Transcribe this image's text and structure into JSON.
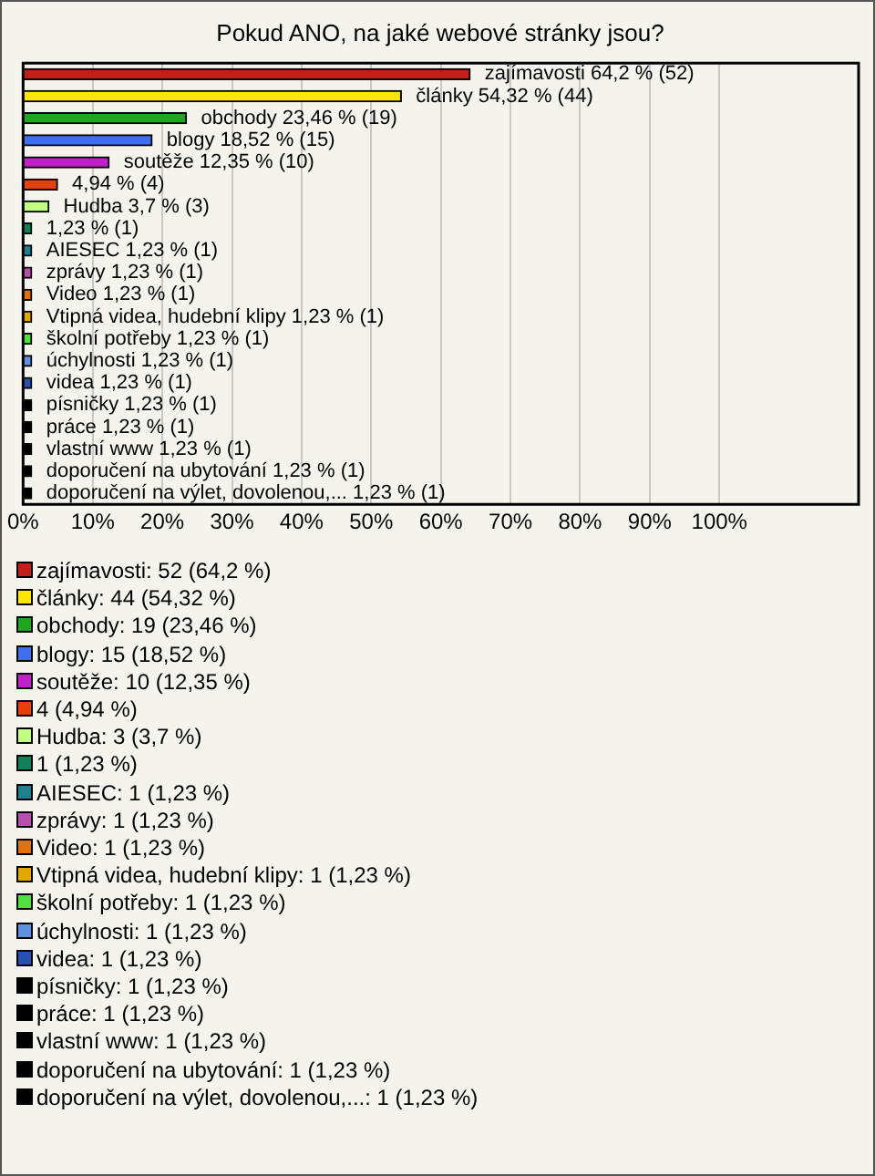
{
  "chart_data": {
    "type": "bar",
    "orientation": "horizontal",
    "stacked": true,
    "title": "Pokud ANO, na jaké webové stránky jsou?",
    "categories": [
      null,
      null,
      null,
      null,
      null,
      null,
      null,
      null,
      null,
      null,
      null,
      null,
      null,
      null,
      null,
      null,
      null,
      null,
      null,
      null
    ],
    "series": [
      {
        "name": "zajímavosti: 52 (64,2 %)",
        "color": "#c0201a",
        "values": [
          64.2,
          null,
          null,
          null,
          null,
          null,
          null,
          null,
          null,
          null,
          null,
          null,
          null,
          null,
          null,
          null,
          null,
          null,
          null,
          null
        ]
      },
      {
        "name": "články: 44 (54,32 %)",
        "color": "#ffe600",
        "values": [
          null,
          54.32,
          null,
          null,
          null,
          null,
          null,
          null,
          null,
          null,
          null,
          null,
          null,
          null,
          null,
          null,
          null,
          null,
          null,
          null
        ]
      },
      {
        "name": "obchody: 19 (23,46 %)",
        "color": "#1fa81f",
        "values": [
          null,
          null,
          23.46,
          null,
          null,
          null,
          null,
          null,
          null,
          null,
          null,
          null,
          null,
          null,
          null,
          null,
          null,
          null,
          null,
          null
        ]
      },
      {
        "name": "blogy: 15 (18,52 %)",
        "color": "#3f6fee",
        "values": [
          null,
          null,
          null,
          18.52,
          null,
          null,
          null,
          null,
          null,
          null,
          null,
          null,
          null,
          null,
          null,
          null,
          null,
          null,
          null,
          null
        ]
      },
      {
        "name": "soutěže: 10 (12,35 %)",
        "color": "#c020c8",
        "values": [
          null,
          null,
          null,
          null,
          12.35,
          null,
          null,
          null,
          null,
          null,
          null,
          null,
          null,
          null,
          null,
          null,
          null,
          null,
          null,
          null
        ]
      },
      {
        "name": "4 (4,94 %)",
        "color": "#e8400c",
        "values": [
          null,
          null,
          null,
          null,
          null,
          4.94,
          null,
          null,
          null,
          null,
          null,
          null,
          null,
          null,
          null,
          null,
          null,
          null,
          null,
          null
        ]
      },
      {
        "name": "Hudba: 3 (3,7 %)",
        "color": "#c0ff80",
        "values": [
          null,
          null,
          null,
          null,
          null,
          null,
          3.7,
          null,
          null,
          null,
          null,
          null,
          null,
          null,
          null,
          null,
          null,
          null,
          null,
          null
        ]
      },
      {
        "name": "1 (1,23 %)",
        "color": "#10805a",
        "values": [
          null,
          null,
          null,
          null,
          null,
          null,
          null,
          1.23,
          null,
          null,
          null,
          null,
          null,
          null,
          null,
          null,
          null,
          null,
          null,
          null
        ]
      },
      {
        "name": "AIESEC: 1 (1,23 %)",
        "color": "#1f7f8f",
        "values": [
          null,
          null,
          null,
          null,
          null,
          null,
          null,
          null,
          1.23,
          null,
          null,
          null,
          null,
          null,
          null,
          null,
          null,
          null,
          null,
          null
        ]
      },
      {
        "name": "zprávy: 1 (1,23 %)",
        "color": "#b850b0",
        "values": [
          null,
          null,
          null,
          null,
          null,
          null,
          null,
          null,
          null,
          1.23,
          null,
          null,
          null,
          null,
          null,
          null,
          null,
          null,
          null,
          null
        ]
      },
      {
        "name": "Video: 1 (1,23 %)",
        "color": "#e07010",
        "values": [
          null,
          null,
          null,
          null,
          null,
          null,
          null,
          null,
          null,
          null,
          1.23,
          null,
          null,
          null,
          null,
          null,
          null,
          null,
          null,
          null
        ]
      },
      {
        "name": "Vtipná videa, hudební klipy: 1 (1,23 %)",
        "color": "#e0a800",
        "values": [
          null,
          null,
          null,
          null,
          null,
          null,
          null,
          null,
          null,
          null,
          null,
          1.23,
          null,
          null,
          null,
          null,
          null,
          null,
          null,
          null
        ]
      },
      {
        "name": "školní potřeby: 1 (1,23 %)",
        "color": "#50e040",
        "values": [
          null,
          null,
          null,
          null,
          null,
          null,
          null,
          null,
          null,
          null,
          null,
          null,
          1.23,
          null,
          null,
          null,
          null,
          null,
          null,
          null
        ]
      },
      {
        "name": "úchylnosti: 1 (1,23 %)",
        "color": "#6090e0",
        "values": [
          null,
          null,
          null,
          null,
          null,
          null,
          null,
          null,
          null,
          null,
          null,
          null,
          null,
          1.23,
          null,
          null,
          null,
          null,
          null,
          null
        ]
      },
      {
        "name": "videa: 1 (1,23 %)",
        "color": "#2850b0",
        "values": [
          null,
          null,
          null,
          null,
          null,
          null,
          null,
          null,
          null,
          null,
          null,
          null,
          null,
          null,
          1.23,
          null,
          null,
          null,
          null,
          null
        ]
      },
      {
        "name": "písničky: 1 (1,23 %)",
        "color": "#000000",
        "values": [
          null,
          null,
          null,
          null,
          null,
          null,
          null,
          null,
          null,
          null,
          null,
          null,
          null,
          null,
          null,
          1.23,
          null,
          null,
          null,
          null
        ]
      },
      {
        "name": "práce: 1 (1,23 %)",
        "color": "#000000",
        "values": [
          null,
          null,
          null,
          null,
          null,
          null,
          null,
          null,
          null,
          null,
          null,
          null,
          null,
          null,
          null,
          null,
          1.23,
          null,
          null,
          null
        ]
      },
      {
        "name": "vlastní www: 1 (1,23 %)",
        "color": "#000000",
        "values": [
          null,
          null,
          null,
          null,
          null,
          null,
          null,
          null,
          null,
          null,
          null,
          null,
          null,
          null,
          null,
          null,
          null,
          1.23,
          null,
          null
        ]
      },
      {
        "name": "doporučení na ubytování: 1 (1,23 %)",
        "color": "#000000",
        "values": [
          null,
          null,
          null,
          null,
          null,
          null,
          null,
          null,
          null,
          null,
          null,
          null,
          null,
          null,
          null,
          null,
          null,
          null,
          1.23,
          null
        ]
      },
      {
        "name": "doporučení na výlet, dovolenou,...: 1 (1,23 %)",
        "color": "#000000",
        "values": [
          null,
          null,
          null,
          null,
          null,
          null,
          null,
          null,
          null,
          null,
          null,
          null,
          null,
          null,
          null,
          null,
          null,
          null,
          null,
          1.23
        ]
      }
    ],
    "value_labels": [
      "zajímavosti 64,2 % (52)",
      "články 54,32 % (44)",
      "obchody 23,46 % (19)",
      "blogy 18,52 % (15)",
      "soutěže 12,35 % (10)",
      "4,94 % (4)",
      "Hudba 3,7 % (3)",
      "1,23 % (1)",
      "AIESEC 1,23 % (1)",
      "zprávy 1,23 % (1)",
      "Video 1,23 % (1)",
      "Vtipná videa, hudební klipy 1,23 % (1)",
      "školní potřeby 1,23 % (1)",
      "úchylnosti 1,23 % (1)",
      "videa 1,23 % (1)",
      "písničky 1,23 % (1)",
      "práce 1,23 % (1)",
      "vlastní www 1,23 % (1)",
      "doporučení na ubytování 1,23 % (1)",
      "doporučení na výlet, dovolenou,... 1,23 % (1)"
    ],
    "xlim": [
      0,
      120
    ],
    "xticks": [
      {
        "value": 0,
        "label": "0%"
      },
      {
        "value": 10,
        "label": "10%"
      },
      {
        "value": 20,
        "label": "20%"
      },
      {
        "value": 30,
        "label": "30%"
      },
      {
        "value": 40,
        "label": "40%"
      },
      {
        "value": 50,
        "label": "50%"
      },
      {
        "value": 60,
        "label": "60%"
      },
      {
        "value": 70,
        "label": "70%"
      },
      {
        "value": 80,
        "label": "80%"
      },
      {
        "value": 90,
        "label": "90%"
      },
      {
        "value": 100,
        "label": "100%"
      }
    ],
    "grid": "x",
    "legend": "bottom"
  }
}
